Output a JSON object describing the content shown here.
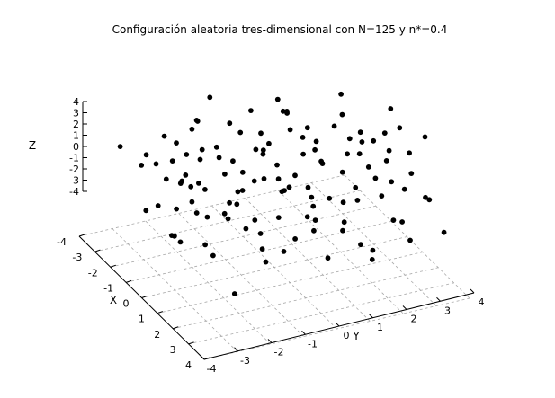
{
  "chart_data": {
    "type": "scatter",
    "title": "Configuración aleatoria tres-dimensional con N=125 y n*=0.4",
    "xlabel": "X",
    "ylabel": "Y",
    "zlabel": "Z",
    "xlim": [
      -4,
      4
    ],
    "ylim": [
      -4,
      4
    ],
    "zlim": [
      -4,
      4
    ],
    "x_ticks": [
      "-4",
      "-3",
      "-2",
      "-1",
      "0",
      "1",
      "2",
      "3",
      "4"
    ],
    "y_ticks": [
      "-4",
      "-3",
      "-2",
      "-1",
      "0",
      "1",
      "2",
      "3",
      "4"
    ],
    "z_ticks": [
      "4",
      "3",
      "2",
      "1",
      "0",
      "-1",
      "-2",
      "-3",
      "-4"
    ],
    "grid": true,
    "marker_color": "#000000",
    "points_note": "Approximate positions read from the projected plot",
    "points": [
      [
        -3.2,
        -2.5,
        -1.6
      ],
      [
        -3.1,
        -2.4,
        -0.6
      ],
      [
        -2.8,
        -2.0,
        1.2
      ],
      [
        -2.7,
        -1.8,
        -1.0
      ],
      [
        -2.6,
        -1.6,
        -3.0
      ],
      [
        -2.5,
        -1.5,
        -2.2
      ],
      [
        -2.3,
        -1.4,
        2.1
      ],
      [
        -2.2,
        -1.2,
        -0.6
      ],
      [
        -2.1,
        -1.1,
        -3.2
      ],
      [
        -2.0,
        -0.8,
        0.5
      ],
      [
        -1.9,
        -0.6,
        -1.9
      ],
      [
        -1.8,
        -0.5,
        2.7
      ],
      [
        -1.7,
        -0.3,
        -3.4
      ],
      [
        -1.6,
        -0.2,
        -1.6
      ],
      [
        -1.5,
        0.0,
        3.9
      ],
      [
        -1.4,
        0.1,
        0.5
      ],
      [
        -1.3,
        0.3,
        -2.1
      ],
      [
        -1.2,
        0.4,
        1.1
      ],
      [
        -1.1,
        0.6,
        -0.8
      ],
      [
        -1.0,
        0.7,
        -3.1
      ],
      [
        -0.9,
        0.9,
        2.4
      ],
      [
        -0.8,
        1.0,
        -1.6
      ],
      [
        -0.7,
        1.2,
        0.3
      ],
      [
        -0.6,
        1.3,
        -2.6
      ],
      [
        -0.5,
        1.5,
        1.5
      ],
      [
        -0.4,
        1.6,
        -0.2
      ],
      [
        -0.3,
        1.8,
        -3.5
      ],
      [
        -0.2,
        1.9,
        3.0
      ],
      [
        -0.1,
        2.1,
        -1.1
      ],
      [
        0.0,
        2.2,
        0.6
      ],
      [
        0.1,
        2.4,
        -2.4
      ],
      [
        0.2,
        2.5,
        2.6
      ],
      [
        0.3,
        2.7,
        -0.5
      ],
      [
        0.4,
        2.8,
        1.9
      ],
      [
        0.5,
        3.0,
        -3.0
      ],
      [
        0.6,
        3.1,
        0.2
      ],
      [
        0.7,
        3.2,
        -1.6
      ],
      [
        0.8,
        3.4,
        3.2
      ],
      [
        0.9,
        3.5,
        -2.2
      ],
      [
        1.0,
        3.6,
        1.1
      ],
      [
        -3.3,
        -1.4,
        -0.5
      ],
      [
        -3.0,
        -0.9,
        1.5
      ],
      [
        -2.9,
        -0.3,
        -2.0
      ],
      [
        -2.6,
        0.2,
        0.3
      ],
      [
        -2.4,
        0.8,
        -1.4
      ],
      [
        -2.2,
        1.3,
        2.0
      ],
      [
        -2.0,
        1.8,
        -0.4
      ],
      [
        -1.8,
        2.3,
        -2.8
      ],
      [
        -1.6,
        2.8,
        1.5
      ],
      [
        -1.4,
        3.3,
        -1.0
      ],
      [
        -3.5,
        0.4,
        -3.6
      ],
      [
        -3.2,
        1.1,
        -1.2
      ],
      [
        -2.8,
        1.7,
        0.9
      ],
      [
        -2.5,
        2.4,
        -2.6
      ],
      [
        -2.1,
        3.0,
        2.5
      ],
      [
        1.2,
        -3.4,
        -1.8
      ],
      [
        1.4,
        -3.0,
        0.8
      ],
      [
        1.6,
        -2.6,
        -3.0
      ],
      [
        1.8,
        -2.2,
        1.7
      ],
      [
        2.0,
        -1.8,
        -0.6
      ],
      [
        2.2,
        -1.4,
        -2.4
      ],
      [
        2.4,
        -1.0,
        0.4
      ],
      [
        2.6,
        -0.6,
        -1.5
      ],
      [
        2.8,
        -0.2,
        2.2
      ],
      [
        3.0,
        0.2,
        -3.2
      ],
      [
        3.2,
        0.6,
        0.0
      ],
      [
        3.4,
        1.0,
        -2.0
      ],
      [
        1.1,
        -2.8,
        2.9
      ],
      [
        1.5,
        -2.1,
        -0.2
      ],
      [
        1.9,
        -1.5,
        3.3
      ],
      [
        2.3,
        -0.8,
        -2.9
      ],
      [
        2.7,
        -0.1,
        1.2
      ],
      [
        3.1,
        0.6,
        -0.9
      ],
      [
        3.5,
        1.3,
        -3.4
      ],
      [
        1.3,
        -1.2,
        -1.2
      ],
      [
        1.7,
        -0.5,
        1.5
      ],
      [
        2.1,
        0.2,
        -2.0
      ],
      [
        2.5,
        0.9,
        0.6
      ],
      [
        2.9,
        1.6,
        -3.6
      ],
      [
        3.3,
        2.3,
        -1.0
      ],
      [
        0.2,
        -3.6,
        0.2
      ],
      [
        0.4,
        -3.2,
        -2.5
      ],
      [
        0.6,
        -2.8,
        1.9
      ],
      [
        0.8,
        -2.4,
        -0.8
      ],
      [
        -0.2,
        -3.0,
        -3.4
      ],
      [
        -0.4,
        -2.6,
        0.9
      ],
      [
        -0.6,
        -2.2,
        -1.5
      ],
      [
        -0.8,
        -1.8,
        2.6
      ],
      [
        0.0,
        -1.5,
        -2.2
      ],
      [
        0.3,
        -1.1,
        0.0
      ],
      [
        0.6,
        -0.7,
        -3.7
      ],
      [
        0.9,
        -0.3,
        1.3
      ],
      [
        -1.0,
        -3.4,
        -2.0
      ],
      [
        -1.2,
        -3.0,
        1.6
      ],
      [
        -1.4,
        -2.6,
        -0.3
      ],
      [
        -1.6,
        -2.2,
        -3.5
      ],
      [
        -1.8,
        -1.8,
        0.8
      ],
      [
        -2.0,
        -1.4,
        3.3
      ],
      [
        1.5,
        1.8,
        -1.2
      ],
      [
        1.8,
        2.2,
        0.9
      ],
      [
        2.1,
        2.6,
        -2.7
      ],
      [
        2.4,
        3.0,
        1.6
      ],
      [
        2.7,
        3.4,
        -0.6
      ],
      [
        3.0,
        3.7,
        -3.3
      ],
      [
        3.3,
        3.0,
        0.7
      ],
      [
        3.6,
        2.4,
        -2.3
      ],
      [
        3.6,
        -0.7,
        1.9
      ],
      [
        3.7,
        -2.0,
        -1.1
      ],
      [
        3.4,
        -2.8,
        -3.8
      ],
      [
        3.0,
        -3.5,
        0.5
      ],
      [
        0.5,
        1.0,
        -3.8
      ],
      [
        0.1,
        0.4,
        -1.0
      ],
      [
        -0.3,
        -0.2,
        1.8
      ],
      [
        -0.7,
        -0.8,
        -2.8
      ],
      [
        -1.1,
        0.9,
        3.6
      ],
      [
        1.0,
        1.8,
        3.6
      ],
      [
        1.4,
        2.8,
        2.4
      ],
      [
        2.0,
        3.6,
        3.9
      ],
      [
        -0.2,
        3.6,
        3.4
      ],
      [
        -1.0,
        3.8,
        0.0
      ],
      [
        -2.4,
        3.7,
        -3.7
      ],
      [
        -3.4,
        2.6,
        -2.0
      ],
      [
        -3.6,
        1.8,
        0.8
      ],
      [
        -3.7,
        -0.2,
        2.2
      ],
      [
        -3.5,
        -3.0,
        0.0
      ]
    ]
  }
}
